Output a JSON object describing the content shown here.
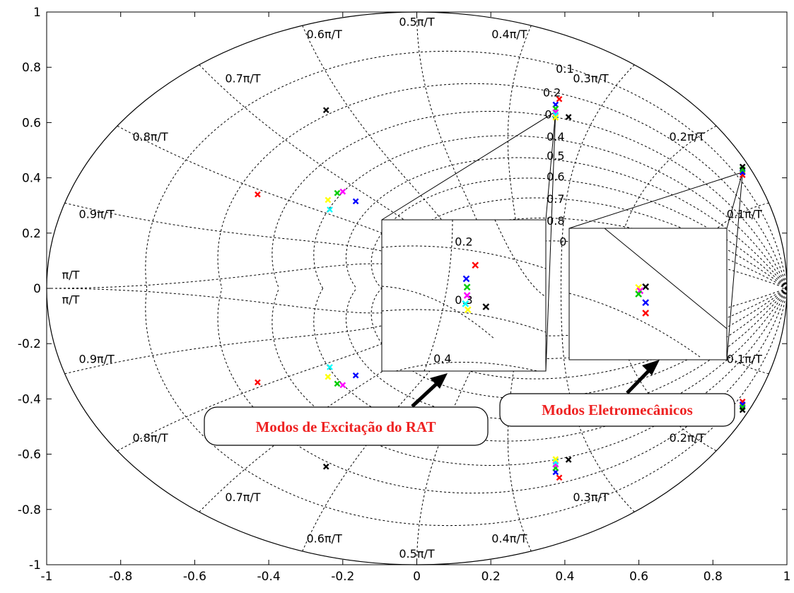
{
  "chart_data": {
    "type": "scatter",
    "subtype": "zplane-pole-map",
    "title": "",
    "xlabel": "",
    "ylabel": "",
    "xlim": [
      -1,
      1
    ],
    "ylim": [
      -1,
      1
    ],
    "x_ticks": [
      -1,
      -0.8,
      -0.6,
      -0.4,
      -0.2,
      0,
      0.2,
      0.4,
      0.6,
      0.8,
      1
    ],
    "y_ticks": [
      -1,
      -0.8,
      -0.6,
      -0.4,
      -0.2,
      0,
      0.2,
      0.4,
      0.6,
      0.8,
      1
    ],
    "x_tick_labels": [
      "-1",
      "-0.8",
      "-0.6",
      "-0.4",
      "-0.2",
      "0",
      "0.2",
      "0.4",
      "0.6",
      "0.8",
      "1"
    ],
    "y_tick_labels": [
      "1",
      "0.8",
      "0.6",
      "0.4",
      "0.2",
      "0",
      "-0.2",
      "-0.4",
      "-0.6",
      "-0.8",
      "-1"
    ],
    "damping_grid": [
      0.1,
      0.2,
      0.3,
      0.4,
      0.5,
      0.6,
      0.7,
      0.8,
      0.9
    ],
    "wn_grid": [
      0.1,
      0.2,
      0.3,
      0.4,
      0.5,
      0.6,
      0.7,
      0.8,
      0.9,
      1.0
    ],
    "grid_labels": [
      {
        "text": "0.5π/T",
        "x": 0.0,
        "y": 0.95
      },
      {
        "text": "0.4π/T",
        "x": 0.25,
        "y": 0.905
      },
      {
        "text": "0.6π/T",
        "x": -0.25,
        "y": 0.905
      },
      {
        "text": "0.3π/T",
        "x": 0.47,
        "y": 0.745
      },
      {
        "text": "0.7π/T",
        "x": -0.47,
        "y": 0.745
      },
      {
        "text": "0.2π/T",
        "x": 0.73,
        "y": 0.535
      },
      {
        "text": "0.8π/T",
        "x": -0.72,
        "y": 0.535
      },
      {
        "text": "0.1π/T",
        "x": 0.885,
        "y": 0.255
      },
      {
        "text": "0.9π/T",
        "x": -0.865,
        "y": 0.255
      },
      {
        "text": "π/T",
        "x": -0.935,
        "y": 0.035
      },
      {
        "text": "π/T",
        "x": -0.935,
        "y": -0.055
      },
      {
        "text": "0.9π/T",
        "x": -0.865,
        "y": -0.27
      },
      {
        "text": "0.8π/T",
        "x": -0.72,
        "y": -0.555
      },
      {
        "text": "0.7π/T",
        "x": -0.47,
        "y": -0.77
      },
      {
        "text": "0.6π/T",
        "x": -0.25,
        "y": -0.92
      },
      {
        "text": "0.5π/T",
        "x": 0.0,
        "y": -0.975
      },
      {
        "text": "0.4π/T",
        "x": 0.25,
        "y": -0.92
      },
      {
        "text": "0.3π/T",
        "x": 0.47,
        "y": -0.77
      },
      {
        "text": "0.2π/T",
        "x": 0.73,
        "y": -0.555
      },
      {
        "text": "0.1π/T",
        "x": 0.885,
        "y": -0.27
      },
      {
        "text": "0.1",
        "x": 0.4,
        "y": 0.78
      },
      {
        "text": "0.2",
        "x": 0.365,
        "y": 0.695
      },
      {
        "text": "0.",
        "x": 0.36,
        "y": 0.615
      },
      {
        "text": "0.4",
        "x": 0.375,
        "y": 0.535
      },
      {
        "text": "0.5",
        "x": 0.375,
        "y": 0.465
      },
      {
        "text": "0.6",
        "x": 0.375,
        "y": 0.39
      },
      {
        "text": "0.7",
        "x": 0.375,
        "y": 0.31
      },
      {
        "text": "0.8",
        "x": 0.375,
        "y": 0.23
      },
      {
        "text": "0",
        "x": 0.395,
        "y": 0.155
      }
    ],
    "series": [
      {
        "color": "#ff0000",
        "points": [
          [
            0.385,
            0.685
          ],
          [
            0.385,
            -0.685
          ],
          [
            0.88,
            0.41
          ],
          [
            0.88,
            -0.41
          ],
          [
            -0.43,
            0.34
          ],
          [
            -0.43,
            -0.34
          ]
        ]
      },
      {
        "color": "#0000ff",
        "points": [
          [
            0.375,
            0.665
          ],
          [
            0.375,
            -0.665
          ],
          [
            0.88,
            0.42
          ],
          [
            0.88,
            -0.42
          ],
          [
            -0.165,
            0.315
          ],
          [
            -0.165,
            -0.315
          ]
        ]
      },
      {
        "color": "#00cc00",
        "points": [
          [
            0.375,
            0.65
          ],
          [
            0.375,
            -0.65
          ],
          [
            0.88,
            0.43
          ],
          [
            0.88,
            -0.43
          ],
          [
            -0.215,
            0.345
          ],
          [
            -0.215,
            -0.345
          ]
        ]
      },
      {
        "color": "#ff00ff",
        "points": [
          [
            0.375,
            0.638
          ],
          [
            0.375,
            -0.638
          ],
          [
            -0.2,
            0.35
          ],
          [
            -0.2,
            -0.35
          ]
        ]
      },
      {
        "color": "#00ffff",
        "points": [
          [
            0.375,
            0.628
          ],
          [
            0.375,
            -0.628
          ],
          [
            -0.235,
            0.285
          ],
          [
            -0.235,
            -0.285
          ]
        ]
      },
      {
        "color": "#ffff00",
        "points": [
          [
            0.375,
            0.618
          ],
          [
            0.375,
            -0.618
          ],
          [
            -0.24,
            0.32
          ],
          [
            -0.24,
            -0.32
          ]
        ]
      },
      {
        "color": "#000000",
        "points": [
          [
            0.41,
            0.62
          ],
          [
            0.41,
            -0.62
          ],
          [
            0.88,
            0.44
          ],
          [
            0.88,
            -0.44
          ],
          [
            -0.245,
            0.645
          ],
          [
            -0.245,
            -0.645
          ]
        ]
      }
    ],
    "inset_excitation": {
      "labels": [
        {
          "text": "0.2",
          "x": 0.5,
          "y": 0.17
        },
        {
          "text": "0.3",
          "x": 0.5,
          "y": 0.555
        },
        {
          "text": "0.4",
          "x": 0.37,
          "y": 0.945
        }
      ],
      "marks": [
        {
          "color": "#ff0000",
          "x": 0.57,
          "y": 0.3
        },
        {
          "color": "#0000ff",
          "x": 0.515,
          "y": 0.39
        },
        {
          "color": "#00cc00",
          "x": 0.52,
          "y": 0.445
        },
        {
          "color": "#ff00ff",
          "x": 0.52,
          "y": 0.5
        },
        {
          "color": "#00ffff",
          "x": 0.51,
          "y": 0.555
        },
        {
          "color": "#ffff00",
          "x": 0.525,
          "y": 0.595
        },
        {
          "color": "#000000",
          "x": 0.635,
          "y": 0.575
        }
      ]
    },
    "inset_electromechanical": {
      "marks": [
        {
          "color": "#ffff00",
          "x": 0.44,
          "y": 0.45
        },
        {
          "color": "#000000",
          "x": 0.485,
          "y": 0.445
        },
        {
          "color": "#ff00ff",
          "x": 0.45,
          "y": 0.475
        },
        {
          "color": "#00cc00",
          "x": 0.44,
          "y": 0.5
        },
        {
          "color": "#0000ff",
          "x": 0.485,
          "y": 0.565
        },
        {
          "color": "#ff0000",
          "x": 0.485,
          "y": 0.645
        }
      ]
    },
    "annotations": [
      {
        "text": "Modos de Excitação do RAT",
        "target": "excitation-inset"
      },
      {
        "text": "Modos Eletromecânicos",
        "target": "electromechanical-inset"
      }
    ]
  }
}
